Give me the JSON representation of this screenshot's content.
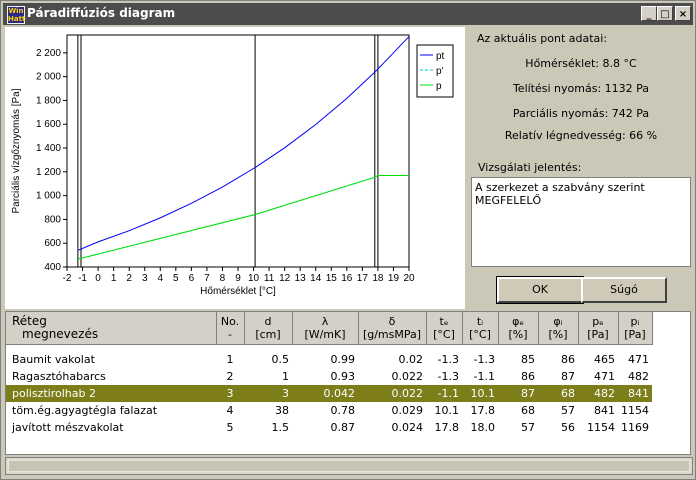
{
  "window": {
    "title": "Páradiffúziós diagram",
    "app_icon_text": "Win Hatt",
    "controls": {
      "minimize": "_",
      "maximize": "□",
      "close": "×"
    }
  },
  "info": {
    "title": "Az aktuális pont adatai:",
    "temperature": "Hőmérséklet: 8.8 °C",
    "saturation": "Telítési nyomás: 1132 Pa",
    "partial": "Parciális nyomás: 742 Pa",
    "humidity": "Relatív légnedvesség: 66 %"
  },
  "report": {
    "label": "Vizsgálati jelentés:",
    "text": "A szerkezet a szabvány szerint MEGFELELŐ"
  },
  "buttons": {
    "ok": "OK",
    "help": "Súgó"
  },
  "chart_data": {
    "type": "line",
    "xlabel": "Hőmérséklet [°C]",
    "ylabel": "Parciális vízgőznyomás [Pa]",
    "xlim": [
      -2,
      20
    ],
    "ylim": [
      400,
      2350
    ],
    "xticks": [
      -2,
      -1,
      0,
      1,
      2,
      3,
      4,
      5,
      6,
      7,
      8,
      9,
      10,
      11,
      12,
      13,
      14,
      15,
      16,
      17,
      18,
      19,
      20
    ],
    "yticks": [
      400,
      600,
      800,
      1000,
      1200,
      1400,
      1600,
      1800,
      2000,
      2200
    ],
    "ytick_labels": [
      "400",
      "600",
      "800",
      "1 000",
      "1 200",
      "1 400",
      "1 600",
      "1 800",
      "2 000",
      "2 200"
    ],
    "vlines": [
      -1.3,
      -1.1,
      10.1,
      17.8,
      18.0
    ],
    "legend": "top-right",
    "series": [
      {
        "name": "pt",
        "color": "#0000ff",
        "x": [
          -1.3,
          0,
          2,
          4,
          6,
          8,
          10.1,
          12,
          14,
          16,
          17.8,
          18.0,
          20
        ],
        "y": [
          540,
          611,
          705,
          813,
          935,
          1072,
          1236,
          1402,
          1598,
          1817,
          2038,
          2064,
          2337
        ]
      },
      {
        "name": "p'",
        "color": "#00c8c8",
        "x": [
          -1.3,
          10.1,
          17.8,
          18.0,
          20
        ],
        "y": [
          466,
          841,
          1154,
          1169,
          1169
        ]
      },
      {
        "name": "p",
        "color": "#00e000",
        "x": [
          -1.3,
          10.1,
          17.8,
          18.0,
          20
        ],
        "y": [
          466,
          841,
          1154,
          1169,
          1169
        ]
      }
    ]
  },
  "table": {
    "headers": [
      {
        "l1": "Réteg",
        "l2": "megnevezés"
      },
      {
        "l1": "No.",
        "l2": "-"
      },
      {
        "l1": "d",
        "l2": "[cm]"
      },
      {
        "l1": "λ",
        "l2": "[W/mK]"
      },
      {
        "l1": "δ",
        "l2": "[g/msMPa]"
      },
      {
        "l1": "tₑ",
        "l2": "[°C]"
      },
      {
        "l1": "tᵢ",
        "l2": "[°C]"
      },
      {
        "l1": "φₑ",
        "l2": "[%]"
      },
      {
        "l1": "φᵢ",
        "l2": "[%]"
      },
      {
        "l1": "pₑ",
        "l2": "[Pa]"
      },
      {
        "l1": "pᵢ",
        "l2": "[Pa]"
      }
    ],
    "rows": [
      [
        "Baumit vakolat",
        "1",
        "0.5",
        "0.99",
        "0.02",
        "-1.3",
        "-1.3",
        "85",
        "86",
        "465",
        "471"
      ],
      [
        "Ragasztóhabarcs",
        "2",
        "1",
        "0.93",
        "0.022",
        "-1.3",
        "-1.1",
        "86",
        "87",
        "471",
        "482"
      ],
      [
        "polisztirolhab 2",
        "3",
        "3",
        "0.042",
        "0.022",
        "-1.1",
        "10.1",
        "87",
        "68",
        "482",
        "841"
      ],
      [
        "töm.ég.agyagtégla falazat",
        "4",
        "38",
        "0.78",
        "0.029",
        "10.1",
        "17.8",
        "68",
        "57",
        "841",
        "1154"
      ],
      [
        "javított mészvakolat",
        "5",
        "1.5",
        "0.87",
        "0.024",
        "17.8",
        "18.0",
        "57",
        "56",
        "1154",
        "1169"
      ]
    ],
    "selected_row": 2
  }
}
